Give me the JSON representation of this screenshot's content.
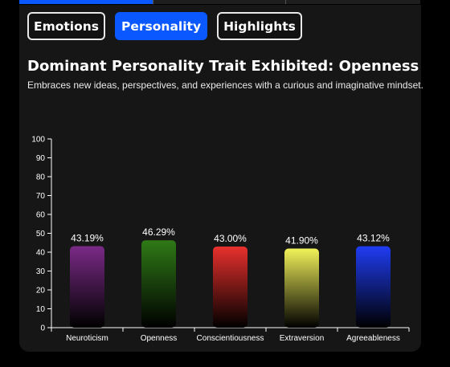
{
  "tabs": [
    {
      "label": "Emotions",
      "active": false
    },
    {
      "label": "Personality",
      "active": true
    },
    {
      "label": "Highlights",
      "active": false
    }
  ],
  "header": {
    "title": "Dominant Personality Trait Exhibited: Openness",
    "subtitle": "Embraces new ideas, perspectives, and experiences with a curious and imaginative mindset."
  },
  "colors": {
    "accent": "#0a58ff",
    "background": "#161616"
  },
  "chart_data": {
    "type": "bar",
    "categories": [
      "Neuroticism",
      "Openness",
      "Conscientiousness",
      "Extraversion",
      "Agreeableness"
    ],
    "values": [
      43.19,
      46.29,
      43.0,
      41.9,
      43.12
    ],
    "value_labels": [
      "43.19%",
      "46.29%",
      "43.00%",
      "41.90%",
      "43.12%"
    ],
    "colors": [
      "#7a2a86",
      "#2f7a16",
      "#e8302c",
      "#f2f25a",
      "#1f3cf2"
    ],
    "ylim": [
      0,
      100
    ],
    "yticks": [
      0,
      10,
      20,
      30,
      40,
      50,
      60,
      70,
      80,
      90,
      100
    ],
    "grid": false,
    "legend": "none"
  }
}
